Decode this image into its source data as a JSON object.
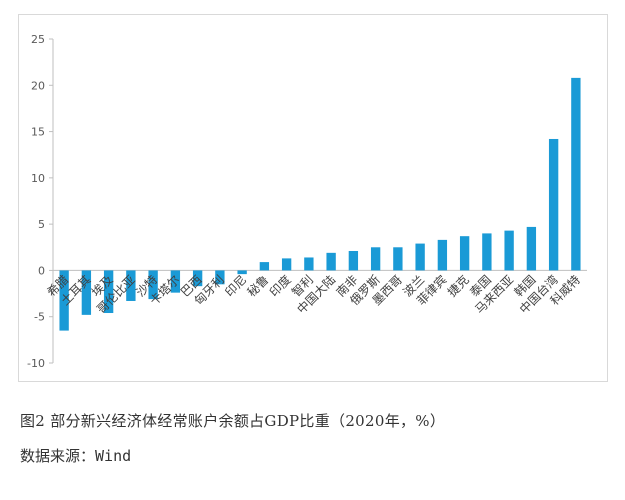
{
  "chart_data": {
    "type": "bar",
    "title": "",
    "xlabel": "",
    "ylabel": "",
    "ylim": [
      -10,
      25
    ],
    "yticks": [
      -10,
      -5,
      0,
      5,
      10,
      15,
      20,
      25
    ],
    "grid": false,
    "bar_color": "#1a9ad6",
    "categories": [
      "希腊",
      "土耳其",
      "埃及",
      "哥伦比亚",
      "沙特",
      "卡塔尔",
      "巴西",
      "匈牙利",
      "印尼",
      "秘鲁",
      "印度",
      "智利",
      "中国大陆",
      "南非",
      "俄罗斯",
      "墨西哥",
      "波兰",
      "菲律宾",
      "捷克",
      "泰国",
      "马来西亚",
      "韩国",
      "中国台湾",
      "科威特"
    ],
    "values": [
      -6.5,
      -4.8,
      -4.6,
      -3.3,
      -3.1,
      -2.4,
      -1.7,
      -1.5,
      -0.4,
      0.9,
      1.3,
      1.4,
      1.9,
      2.1,
      2.5,
      2.5,
      2.9,
      3.3,
      3.7,
      4.0,
      4.3,
      4.7,
      14.2,
      20.8
    ]
  },
  "caption": "图2  部分新兴经济体经常账户余额占GDP比重（2020年，%）",
  "source": {
    "label": "数据来源：",
    "value": "Wind"
  }
}
